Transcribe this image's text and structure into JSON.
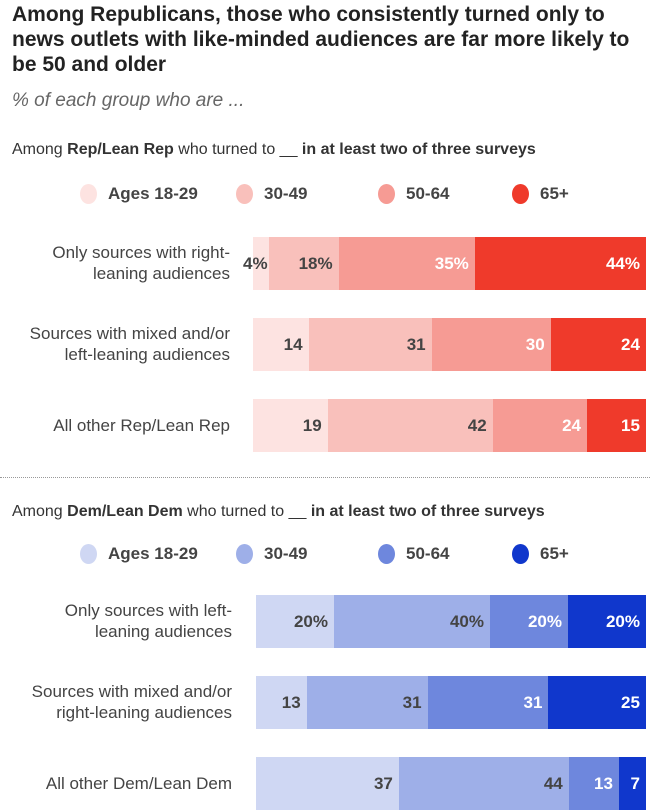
{
  "title": "Among Republicans, those who consistently turned only to news outlets with like-minded audiences are far more likely to be 50 and older",
  "subtitle": "% of each group who are ...",
  "chart_data": [
    {
      "type": "bar",
      "stacked": true,
      "orientation": "horizontal",
      "header": {
        "pre": "Among ",
        "bold": "Rep/Lean Rep",
        "mid": " who turned to __ ",
        "bold2": "in at least two of three surveys"
      },
      "legend": [
        "Ages 18-29",
        "30-49",
        "50-64",
        "65+"
      ],
      "colors": [
        "#fde3e1",
        "#f9c0bb",
        "#f69b94",
        "#ef3a2b"
      ],
      "text_colors": [
        "#444",
        "#444",
        "#fff",
        "#fff"
      ],
      "categories": [
        "Only sources with right-leaning audiences",
        "Sources with mixed and/or left-leaning audiences",
        "All other Rep/Lean Rep"
      ],
      "category_lines": [
        [
          "Only sources with right-",
          "leaning audiences"
        ],
        [
          "Sources with mixed and/or",
          "left-leaning audiences"
        ],
        [
          "All other Rep/Lean Rep"
        ]
      ],
      "values": [
        [
          4,
          18,
          35,
          44
        ],
        [
          14,
          31,
          30,
          24
        ],
        [
          19,
          42,
          24,
          15
        ]
      ],
      "labels": [
        [
          "4%",
          "18%",
          "35%",
          "44%"
        ],
        [
          "14",
          "31",
          "30",
          "24"
        ],
        [
          "19",
          "42",
          "24",
          "15"
        ]
      ]
    },
    {
      "type": "bar",
      "stacked": true,
      "orientation": "horizontal",
      "header": {
        "pre": "Among ",
        "bold": "Dem/Lean Dem",
        "mid": " who turned to __ ",
        "bold2": "in at least two of three surveys"
      },
      "legend": [
        "Ages 18-29",
        "30-49",
        "50-64",
        "65+"
      ],
      "colors": [
        "#cfd7f3",
        "#9eafe8",
        "#6e87dd",
        "#1037cc"
      ],
      "text_colors": [
        "#444",
        "#444",
        "#fff",
        "#fff"
      ],
      "categories": [
        "Only sources with left-leaning audiences",
        "Sources with mixed and/or right-leaning audiences",
        "All other Dem/Lean Dem"
      ],
      "category_lines": [
        [
          "Only sources with left-",
          "leaning audiences"
        ],
        [
          "Sources with mixed and/or",
          "right-leaning audiences"
        ],
        [
          "All other Dem/Lean Dem"
        ]
      ],
      "values": [
        [
          20,
          40,
          20,
          20
        ],
        [
          13,
          31,
          31,
          25
        ],
        [
          37,
          44,
          13,
          7
        ]
      ],
      "labels": [
        [
          "20%",
          "40%",
          "20%",
          "20%"
        ],
        [
          "13",
          "31",
          "31",
          "25"
        ],
        [
          "37",
          "44",
          "13",
          "7"
        ]
      ]
    }
  ]
}
